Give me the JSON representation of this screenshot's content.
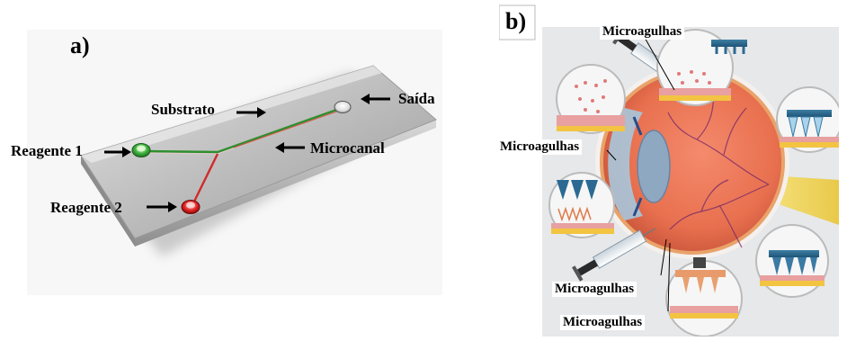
{
  "panel_a": {
    "letter": "a)",
    "labels": {
      "substrate": "Substrato",
      "outlet": "Saída",
      "reagent1": "Reagente 1",
      "reagent2": "Reagente 2",
      "microchannel": "Microcanal"
    }
  },
  "panel_b": {
    "letter": "b)",
    "labels": {
      "microneedles_top": "Microagulhas",
      "microneedles_left": "Microagulhas",
      "microneedles_bottom_1": "Microagulhas",
      "microneedles_bottom_2": "Microagulhas"
    }
  }
}
